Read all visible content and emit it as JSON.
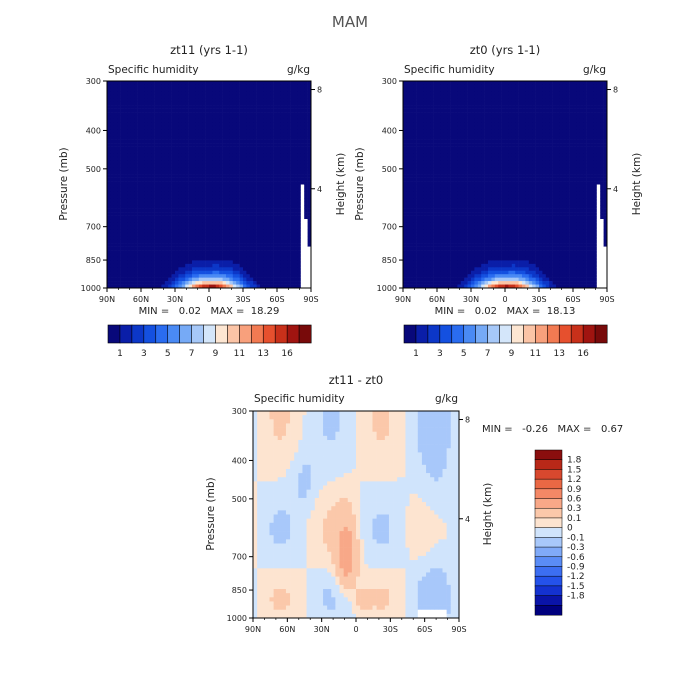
{
  "figure_title": "MAM",
  "colors": {
    "top_levels": [
      "#08087a",
      "#0a1ea8",
      "#0c37c8",
      "#1450e0",
      "#2a6cf0",
      "#4a8af4",
      "#76aaf6",
      "#a6c8f8",
      "#d4e6fa",
      "#fde6d2",
      "#fbc4a6",
      "#f8a07c",
      "#f27a52",
      "#e6502e",
      "#c8301a",
      "#a01410",
      "#780a0a"
    ],
    "diff_levels": [
      "#00007e",
      "#0a14a8",
      "#1432d0",
      "#2452ea",
      "#3c6ef2",
      "#5a8cf6",
      "#80aaf8",
      "#a8c8fa",
      "#d0e4fc",
      "#fde4d0",
      "#fbc8aa",
      "#f8a888",
      "#f48866",
      "#ea6844",
      "#d8482e",
      "#b82818",
      "#8a0e0e"
    ]
  },
  "chart_data": [
    {
      "type": "heatmap",
      "id": "zt11",
      "title": "zt11 (yrs 1-1)",
      "left_label": "Specific humidity",
      "right_label": "g/kg",
      "ylabel": "Pressure (mb)",
      "ylabel_right": "Height (km)",
      "x_ticks": [
        "90N",
        "60N",
        "30N",
        "0",
        "30S",
        "60S",
        "90S"
      ],
      "y_ticks": [
        "300",
        "400",
        "500",
        "700",
        "850",
        "1000"
      ],
      "y_ticks_right": [
        "8",
        "4"
      ],
      "min_max": "MIN =   0.02   MAX =  18.29",
      "colorbar_labels": [
        "1",
        "3",
        "5",
        "7",
        "9",
        "11",
        "13",
        "16"
      ],
      "profile": {
        "peak_lat": -2,
        "width_lo": 0.2,
        "width_hi": 1.25,
        "cutoff_lat": -80,
        "peak_value": 18.29
      }
    },
    {
      "type": "heatmap",
      "id": "zt0",
      "title": "zt0 (yrs 1-1)",
      "left_label": "Specific humidity",
      "right_label": "g/kg",
      "ylabel": "Pressure (mb)",
      "ylabel_right": "Height (km)",
      "x_ticks": [
        "90N",
        "60N",
        "30N",
        "0",
        "30S",
        "60S",
        "90S"
      ],
      "y_ticks": [
        "300",
        "400",
        "500",
        "700",
        "850",
        "1000"
      ],
      "y_ticks_right": [
        "8",
        "4"
      ],
      "min_max": "MIN =   0.02   MAX =  18.13",
      "colorbar_labels": [
        "1",
        "3",
        "5",
        "7",
        "9",
        "11",
        "13",
        "16"
      ],
      "profile": {
        "peak_lat": -2,
        "width_lo": 0.2,
        "width_hi": 1.25,
        "cutoff_lat": -80,
        "peak_value": 18.13
      }
    },
    {
      "type": "heatmap",
      "id": "diff",
      "title": "zt11 - zt0",
      "left_label": "Specific humidity",
      "right_label": "g/kg",
      "ylabel": "Pressure (mb)",
      "ylabel_right": "Height (km)",
      "x_ticks": [
        "90N",
        "60N",
        "30N",
        "0",
        "30S",
        "60S",
        "90S"
      ],
      "y_ticks": [
        "300",
        "400",
        "500",
        "700",
        "850",
        "1000"
      ],
      "y_ticks_right": [
        "8",
        "4"
      ],
      "min_max": "MIN =   -0.26   MAX =   0.67",
      "colorbar_labels": [
        "1.8",
        "1.5",
        "1.2",
        "0.9",
        "0.6",
        "0.3",
        "0.1",
        "0",
        "-0.1",
        "-0.3",
        "-0.6",
        "-0.9",
        "-1.2",
        "-1.5",
        "-1.8"
      ]
    }
  ]
}
